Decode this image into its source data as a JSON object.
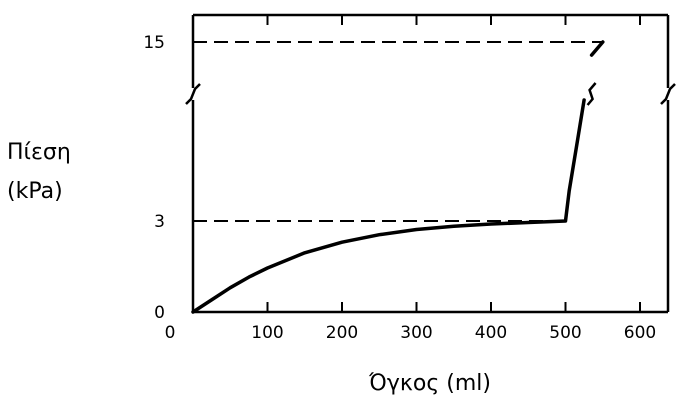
{
  "chart_data": {
    "type": "line",
    "xlabel": "Όγκος (ml)",
    "ylabel_line1": "Πίεση",
    "ylabel_line2": "(kPa)",
    "x_ticks": [
      0,
      100,
      200,
      300,
      400,
      500,
      600
    ],
    "y_ticks": [
      0,
      3,
      15
    ],
    "xlim": [
      0,
      600
    ],
    "y_axis_break": true,
    "grid": false,
    "series": [
      {
        "x": [
          0,
          25,
          50,
          75,
          100,
          150,
          200,
          250,
          300,
          350,
          400,
          450,
          500,
          505,
          515,
          525,
          535,
          550
        ],
        "y": [
          0,
          0.4,
          0.8,
          1.15,
          1.45,
          1.95,
          2.3,
          2.55,
          2.72,
          2.83,
          2.9,
          2.95,
          3.0,
          3.8,
          5.0,
          6.2,
          12.5,
          15.0
        ]
      }
    ],
    "reference_lines": [
      {
        "y": 3,
        "x_from": 0,
        "x_to": 500,
        "style": "dashed"
      },
      {
        "y": 15,
        "x_from": 0,
        "x_to": 550,
        "style": "dashed"
      }
    ]
  }
}
